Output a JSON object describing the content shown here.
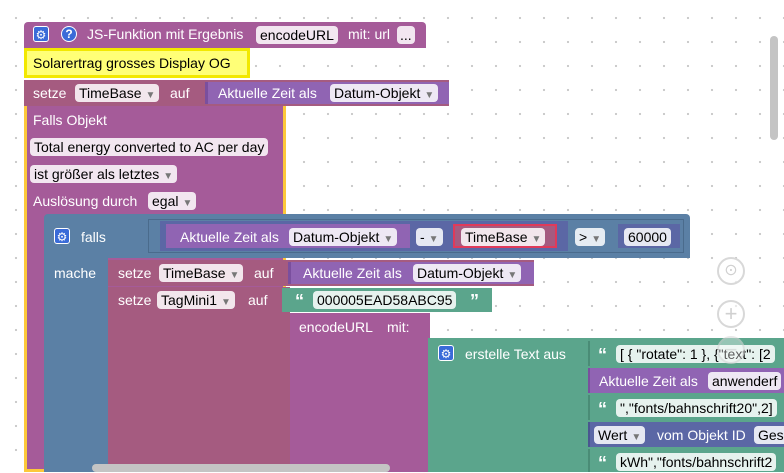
{
  "function_header": {
    "title": "JS-Funktion mit Ergebnis",
    "name": "encodeURL",
    "param_label": "mit: url",
    "more": "..."
  },
  "comment": "Solarertrag grosses Display OG",
  "setze1": {
    "setze": "setze",
    "var": "TimeBase",
    "auf": "auf",
    "value_label": "Aktuelle Zeit als",
    "value_option": "Datum-Objekt"
  },
  "trigger": {
    "title": "Falls Objekt",
    "object": "Total energy converted to AC per day",
    "condition": "ist größer als letztes",
    "ausloesung": "Auslösung durch",
    "ausloesung_value": "egal"
  },
  "if_block": {
    "falls": "falls",
    "mache": "mache",
    "left_label": "Aktuelle Zeit als",
    "left_option": "Datum-Objekt",
    "op_minus": "-",
    "var": "TimeBase",
    "op_cmp": ">",
    "number": "60000"
  },
  "setze2": {
    "setze": "setze",
    "var": "TimeBase",
    "auf": "auf",
    "value_label": "Aktuelle Zeit als",
    "value_option": "Datum-Objekt"
  },
  "setze3": {
    "setze": "setze",
    "var": "TagMini1",
    "auf": "auf",
    "text": "000005EAD58ABC95"
  },
  "encode": {
    "label": "encodeURL",
    "mit": "mit:"
  },
  "text_join": {
    "label": "erstelle Text aus",
    "item1": "[ { \"rotate\": 1 },  {\"text\": [2",
    "item2_label": "Aktuelle Zeit als",
    "item2_option": "anwenderf",
    "item3": "\",\"fonts/bahnschrift20\",2]",
    "item4_dd": "Wert",
    "item4_label": "vom Objekt ID",
    "item4_field": "Ges",
    "item5": "kWh\",\"fonts/bahnschrift2"
  },
  "colors": {
    "function": "#a55b99",
    "comment_bg": "#ffff77",
    "variable": "#a55b80",
    "time": "#9064b3",
    "logic": "#5b80a5",
    "text": "#5ba58c",
    "selected": "#fcc83a"
  }
}
